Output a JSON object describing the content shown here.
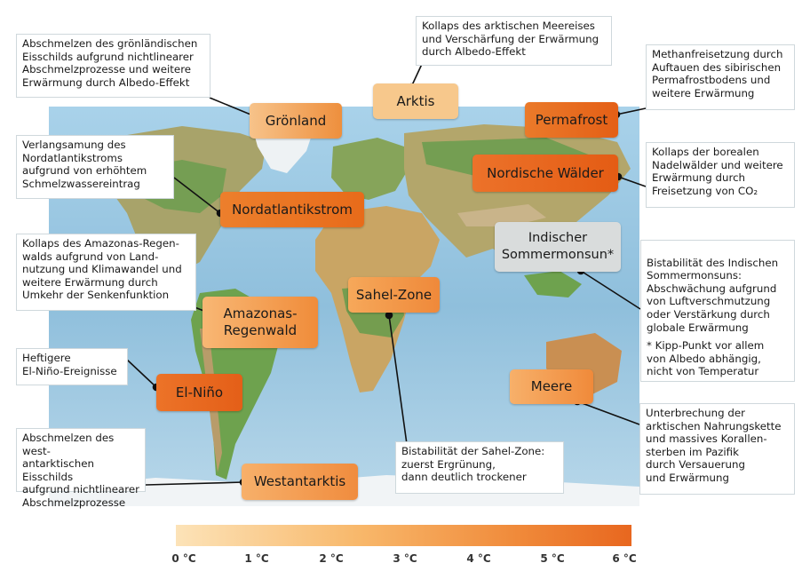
{
  "tipping_points": [
    {
      "name": "Grönland",
      "key": "greenland",
      "color": "#f3a459",
      "desc": "Abschmelzen des grönländischen\nEisschilds aufgrund nichtlinearer\nAbschmelzprozesse und weitere\nErwärmung durch Albedo-Effekt"
    },
    {
      "name": "Arktis",
      "key": "arctic",
      "color": "#f7c88c",
      "desc": "Kollaps des arktischen Meereises\nund Verschärfung der Erwärmung\ndurch Albedo-Effekt"
    },
    {
      "name": "Permafrost",
      "key": "permafrost",
      "color": "#e86a1f",
      "desc": "Methanfreisetzung durch\nAuftauen des sibirischen\nPermafrostbodens und\nweitere Erwärmung"
    },
    {
      "name": "Nordatlantikstrom",
      "key": "atlantic",
      "color": "#e9741f",
      "desc": "Verlangsamung des\nNordatlantikstroms\naufgrund von erhöhtem\nSchmelzwassereintrag"
    },
    {
      "name": "Nordische Wälder",
      "key": "boreal",
      "color": "#e86118",
      "desc": "Kollaps der borealen\nNadelwälder und weitere\nErwärmung durch\nFreisetzung von CO₂"
    },
    {
      "name": "Indischer\nSommermonsun*",
      "key": "monsoon",
      "color": "#d9dcdc",
      "desc": "Bistabilität des Indischen\nSommermonsuns:\nAbschwächung aufgrund\nvon Luftverschmutzung\noder Verstärkung durch\nglobale Erwärmung",
      "note": "* Kipp-Punkt vor allem\nvon Albedo abhängig,\nnicht von Temperatur"
    },
    {
      "name": "Amazonas-\nRegenwald",
      "key": "amazon",
      "color": "#f4a154",
      "desc": "Kollaps des Amazonas-Regen-\nwalds aufgrund von Land-\nnutzung und Klimawandel und\nweitere Erwärmung durch\nUmkehr der Senkenfunktion"
    },
    {
      "name": "Sahel-Zone",
      "key": "sahel",
      "color": "#f29040",
      "desc": "Bistabilität der Sahel-Zone:\nzuerst Ergrünung,\ndann deutlich trockener"
    },
    {
      "name": "El-Niño",
      "key": "elnino",
      "color": "#e9661d",
      "desc": "Heftigere\nEl-Niño-Ereignisse"
    },
    {
      "name": "Meere",
      "key": "oceans",
      "color": "#f39447",
      "desc": "Unterbrechung der\narktischen Nahrungskette\nund massives Korallen-\nsterben im Pazifik\ndurch Versauerung\nund Erwärmung"
    },
    {
      "name": "Westantarktis",
      "key": "westantarctic",
      "color": "#f29a4c",
      "desc": "Abschmelzen des west-\nantarktischen Eisschilds\naufgrund nichtlinearer\nAbschmelzprozesse"
    }
  ],
  "scale": {
    "ticks": [
      "0 °C",
      "1 °C",
      "2 °C",
      "3 °C",
      "4 °C",
      "5 °C",
      "6 °C"
    ],
    "start_color": "#fce3b8",
    "end_color": "#e8671f"
  },
  "map_colors": {
    "ocean": "#8fbfdc",
    "land": "#b8a76f",
    "forest": "#5f9b4a",
    "ice": "#f1f4f6"
  }
}
